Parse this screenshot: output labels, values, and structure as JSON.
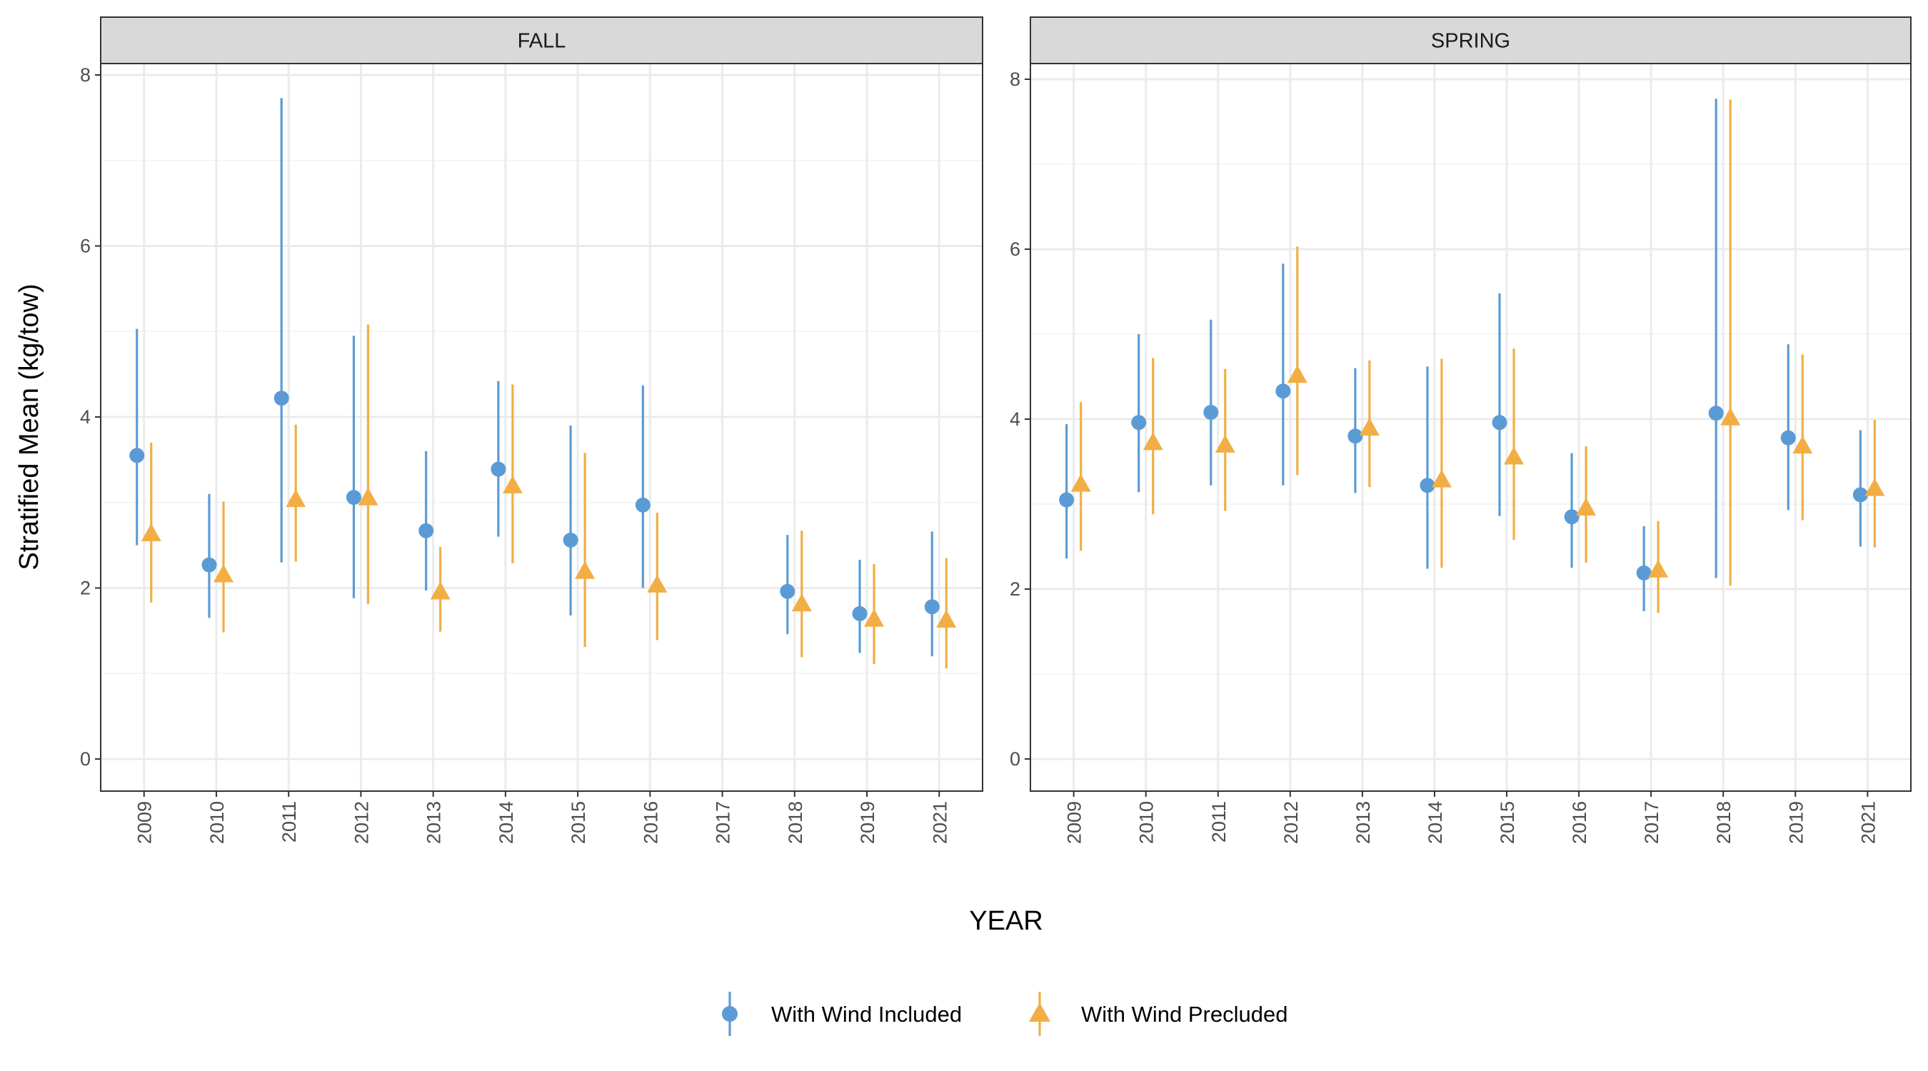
{
  "chart_data": {
    "type": "scatter",
    "subtype": "point-range",
    "xlabel": "YEAR",
    "ylabel": "Stratified Mean (kg/tow)",
    "ylim": [
      0,
      8
    ],
    "yticks": [
      "0",
      "2",
      "4",
      "6",
      "8"
    ],
    "grid": true,
    "legend_position": "bottom",
    "colors": {
      "included": "#5b9bd5",
      "precluded": "#f2ae45"
    },
    "legend": [
      {
        "key": "included",
        "label": "With Wind Included",
        "shape": "circle"
      },
      {
        "key": "precluded",
        "label": "With Wind Precluded",
        "shape": "triangle"
      }
    ],
    "panels": [
      {
        "name": "FALL",
        "categories": [
          "2009",
          "2010",
          "2011",
          "2012",
          "2013",
          "2014",
          "2015",
          "2016",
          "2017",
          "2018",
          "2019",
          "2021"
        ],
        "series": [
          {
            "key": "included",
            "points": [
              {
                "x": "2009",
                "y": 3.55,
                "lo": 2.5,
                "hi": 5.03
              },
              {
                "x": "2010",
                "y": 2.27,
                "lo": 1.65,
                "hi": 3.1
              },
              {
                "x": "2011",
                "y": 4.22,
                "lo": 2.3,
                "hi": 7.73
              },
              {
                "x": "2012",
                "y": 3.06,
                "lo": 1.88,
                "hi": 4.95
              },
              {
                "x": "2013",
                "y": 2.67,
                "lo": 1.97,
                "hi": 3.6
              },
              {
                "x": "2014",
                "y": 3.39,
                "lo": 2.6,
                "hi": 4.42
              },
              {
                "x": "2015",
                "y": 2.56,
                "lo": 1.68,
                "hi": 3.9
              },
              {
                "x": "2016",
                "y": 2.97,
                "lo": 2.0,
                "hi": 4.37
              },
              {
                "x": "2018",
                "y": 1.96,
                "lo": 1.46,
                "hi": 2.62
              },
              {
                "x": "2019",
                "y": 1.7,
                "lo": 1.24,
                "hi": 2.33
              },
              {
                "x": "2021",
                "y": 1.78,
                "lo": 1.2,
                "hi": 2.66
              }
            ]
          },
          {
            "key": "precluded",
            "points": [
              {
                "x": "2009",
                "y": 2.63,
                "lo": 1.83,
                "hi": 3.7
              },
              {
                "x": "2010",
                "y": 2.15,
                "lo": 1.48,
                "hi": 3.01
              },
              {
                "x": "2011",
                "y": 3.03,
                "lo": 2.31,
                "hi": 3.91
              },
              {
                "x": "2012",
                "y": 3.05,
                "lo": 1.81,
                "hi": 5.08
              },
              {
                "x": "2013",
                "y": 1.95,
                "lo": 1.49,
                "hi": 2.48
              },
              {
                "x": "2014",
                "y": 3.19,
                "lo": 2.29,
                "hi": 4.38
              },
              {
                "x": "2015",
                "y": 2.19,
                "lo": 1.31,
                "hi": 3.58
              },
              {
                "x": "2016",
                "y": 2.03,
                "lo": 1.39,
                "hi": 2.88
              },
              {
                "x": "2018",
                "y": 1.81,
                "lo": 1.19,
                "hi": 2.67
              },
              {
                "x": "2019",
                "y": 1.63,
                "lo": 1.11,
                "hi": 2.28
              },
              {
                "x": "2021",
                "y": 1.62,
                "lo": 1.06,
                "hi": 2.35
              }
            ]
          }
        ]
      },
      {
        "name": "SPRING",
        "categories": [
          "2009",
          "2010",
          "2011",
          "2012",
          "2013",
          "2014",
          "2015",
          "2016",
          "2017",
          "2018",
          "2019",
          "2021"
        ],
        "series": [
          {
            "key": "included",
            "points": [
              {
                "x": "2009",
                "y": 3.05,
                "lo": 2.36,
                "hi": 3.94
              },
              {
                "x": "2010",
                "y": 3.96,
                "lo": 3.14,
                "hi": 5.0
              },
              {
                "x": "2011",
                "y": 4.08,
                "lo": 3.22,
                "hi": 5.17
              },
              {
                "x": "2012",
                "y": 4.33,
                "lo": 3.22,
                "hi": 5.83
              },
              {
                "x": "2013",
                "y": 3.8,
                "lo": 3.13,
                "hi": 4.6
              },
              {
                "x": "2014",
                "y": 3.22,
                "lo": 2.24,
                "hi": 4.62
              },
              {
                "x": "2015",
                "y": 3.96,
                "lo": 2.86,
                "hi": 5.48
              },
              {
                "x": "2016",
                "y": 2.85,
                "lo": 2.25,
                "hi": 3.6
              },
              {
                "x": "2017",
                "y": 2.19,
                "lo": 1.74,
                "hi": 2.74
              },
              {
                "x": "2018",
                "y": 4.07,
                "lo": 2.13,
                "hi": 7.77
              },
              {
                "x": "2019",
                "y": 3.78,
                "lo": 2.93,
                "hi": 4.88
              },
              {
                "x": "2021",
                "y": 3.11,
                "lo": 2.5,
                "hi": 3.87
              }
            ]
          },
          {
            "key": "precluded",
            "points": [
              {
                "x": "2009",
                "y": 3.23,
                "lo": 2.45,
                "hi": 4.2
              },
              {
                "x": "2010",
                "y": 3.72,
                "lo": 2.88,
                "hi": 4.72
              },
              {
                "x": "2011",
                "y": 3.69,
                "lo": 2.92,
                "hi": 4.59
              },
              {
                "x": "2012",
                "y": 4.51,
                "lo": 3.34,
                "hi": 6.03
              },
              {
                "x": "2013",
                "y": 3.89,
                "lo": 3.2,
                "hi": 4.69
              },
              {
                "x": "2014",
                "y": 3.28,
                "lo": 2.25,
                "hi": 4.71
              },
              {
                "x": "2015",
                "y": 3.55,
                "lo": 2.58,
                "hi": 4.83
              },
              {
                "x": "2016",
                "y": 2.95,
                "lo": 2.31,
                "hi": 3.68
              },
              {
                "x": "2017",
                "y": 2.22,
                "lo": 1.72,
                "hi": 2.8
              },
              {
                "x": "2018",
                "y": 4.01,
                "lo": 2.04,
                "hi": 7.76
              },
              {
                "x": "2019",
                "y": 3.68,
                "lo": 2.81,
                "hi": 4.76
              },
              {
                "x": "2021",
                "y": 3.18,
                "lo": 2.49,
                "hi": 3.99
              }
            ]
          }
        ]
      }
    ]
  }
}
